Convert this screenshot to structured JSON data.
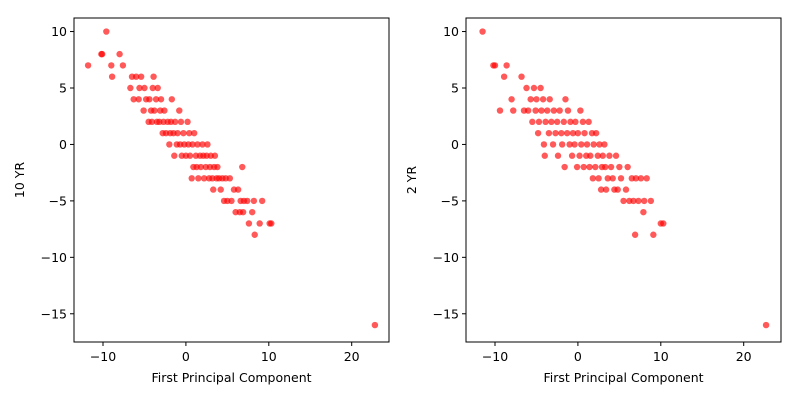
{
  "chart_data": [
    {
      "type": "scatter",
      "xlabel": "First Principal Component",
      "ylabel": "10 YR",
      "xlim": [
        -13.5,
        24.5
      ],
      "ylim": [
        -17.5,
        11.2
      ],
      "xticks": [
        -10,
        0,
        10,
        20
      ],
      "yticks": [
        10,
        5,
        0,
        -5,
        -10,
        -15
      ],
      "grid": false,
      "marker_color": "#ff0000",
      "points": [
        [
          -11.8,
          7
        ],
        [
          -10.2,
          8
        ],
        [
          -10.1,
          8
        ],
        [
          -9.6,
          10
        ],
        [
          -9.0,
          7
        ],
        [
          -8.9,
          6
        ],
        [
          -8.0,
          8
        ],
        [
          -7.6,
          7
        ],
        [
          -6.7,
          5
        ],
        [
          -6.5,
          6
        ],
        [
          -6.3,
          4
        ],
        [
          -6.0,
          6
        ],
        [
          -5.7,
          4
        ],
        [
          -5.6,
          5
        ],
        [
          -5.4,
          6
        ],
        [
          -5.1,
          3
        ],
        [
          -5.0,
          5
        ],
        [
          -4.8,
          4
        ],
        [
          -4.5,
          2
        ],
        [
          -4.4,
          4
        ],
        [
          -4.2,
          3
        ],
        [
          -4.1,
          2
        ],
        [
          -4.0,
          5
        ],
        [
          -3.9,
          6
        ],
        [
          -3.8,
          3
        ],
        [
          -3.6,
          4
        ],
        [
          -3.5,
          2
        ],
        [
          -3.4,
          5
        ],
        [
          -3.2,
          2
        ],
        [
          -3.1,
          3
        ],
        [
          -3.0,
          4
        ],
        [
          -2.8,
          1
        ],
        [
          -2.7,
          2
        ],
        [
          -2.6,
          3
        ],
        [
          -2.4,
          1
        ],
        [
          -2.2,
          2
        ],
        [
          -2.0,
          0
        ],
        [
          -1.9,
          1
        ],
        [
          -1.8,
          2
        ],
        [
          -1.7,
          4
        ],
        [
          -1.5,
          1
        ],
        [
          -1.4,
          -1
        ],
        [
          -1.3,
          2
        ],
        [
          -1.1,
          0
        ],
        [
          -1.0,
          1
        ],
        [
          -0.8,
          3
        ],
        [
          -0.7,
          0
        ],
        [
          -0.6,
          2
        ],
        [
          -0.5,
          -1
        ],
        [
          -0.3,
          1
        ],
        [
          -0.2,
          0
        ],
        [
          0.0,
          -1
        ],
        [
          0.2,
          2
        ],
        [
          0.3,
          0
        ],
        [
          0.4,
          1
        ],
        [
          0.5,
          -1
        ],
        [
          0.7,
          -3
        ],
        [
          0.8,
          0
        ],
        [
          0.9,
          -2
        ],
        [
          1.0,
          1
        ],
        [
          1.2,
          -1
        ],
        [
          1.3,
          -2
        ],
        [
          1.4,
          0
        ],
        [
          1.5,
          -3
        ],
        [
          1.7,
          -1
        ],
        [
          1.8,
          -2
        ],
        [
          2.0,
          0
        ],
        [
          2.1,
          -1
        ],
        [
          2.2,
          -3
        ],
        [
          2.4,
          -2
        ],
        [
          2.5,
          -1
        ],
        [
          2.6,
          0
        ],
        [
          2.8,
          -3
        ],
        [
          2.9,
          -2
        ],
        [
          3.0,
          -1
        ],
        [
          3.2,
          -3
        ],
        [
          3.3,
          -4
        ],
        [
          3.4,
          -2
        ],
        [
          3.5,
          -1
        ],
        [
          3.7,
          -3
        ],
        [
          3.8,
          -2
        ],
        [
          4.0,
          -3
        ],
        [
          4.2,
          -4
        ],
        [
          4.4,
          -3
        ],
        [
          4.6,
          -5
        ],
        [
          4.8,
          -3
        ],
        [
          5.0,
          -5
        ],
        [
          5.3,
          -3
        ],
        [
          5.5,
          -5
        ],
        [
          5.8,
          -4
        ],
        [
          6.0,
          -6
        ],
        [
          6.3,
          -4
        ],
        [
          6.5,
          -6
        ],
        [
          6.6,
          -5
        ],
        [
          6.8,
          -2
        ],
        [
          6.9,
          -6
        ],
        [
          7.0,
          -5
        ],
        [
          7.4,
          -5
        ],
        [
          7.6,
          -7
        ],
        [
          8.0,
          -6
        ],
        [
          8.2,
          -5
        ],
        [
          8.3,
          -8
        ],
        [
          8.9,
          -7
        ],
        [
          9.2,
          -5
        ],
        [
          10.1,
          -7
        ],
        [
          10.3,
          -7
        ],
        [
          22.8,
          -16
        ]
      ]
    },
    {
      "type": "scatter",
      "xlabel": "First Principal Component",
      "ylabel": "2 YR",
      "xlim": [
        -13.5,
        24.5
      ],
      "ylim": [
        -17.5,
        11.2
      ],
      "xticks": [
        -10,
        0,
        10,
        20
      ],
      "yticks": [
        10,
        5,
        0,
        -5,
        -10,
        -15
      ],
      "grid": false,
      "marker_color": "#ff0000",
      "points": [
        [
          -11.5,
          10
        ],
        [
          -10.2,
          7
        ],
        [
          -10.0,
          7
        ],
        [
          -9.4,
          3
        ],
        [
          -8.9,
          6
        ],
        [
          -8.6,
          7
        ],
        [
          -8.0,
          4
        ],
        [
          -7.8,
          3
        ],
        [
          -6.8,
          6
        ],
        [
          -6.5,
          3
        ],
        [
          -6.2,
          5
        ],
        [
          -6.0,
          3
        ],
        [
          -5.7,
          4
        ],
        [
          -5.5,
          2
        ],
        [
          -5.3,
          5
        ],
        [
          -5.1,
          3
        ],
        [
          -5.0,
          4
        ],
        [
          -4.8,
          1
        ],
        [
          -4.7,
          2
        ],
        [
          -4.5,
          5
        ],
        [
          -4.4,
          3
        ],
        [
          -4.2,
          4
        ],
        [
          -4.1,
          0
        ],
        [
          -4.0,
          -1
        ],
        [
          -3.9,
          2
        ],
        [
          -3.7,
          3
        ],
        [
          -3.5,
          1
        ],
        [
          -3.4,
          4
        ],
        [
          -3.2,
          2
        ],
        [
          -3.0,
          0
        ],
        [
          -2.9,
          3
        ],
        [
          -2.7,
          1
        ],
        [
          -2.5,
          2
        ],
        [
          -2.4,
          -1
        ],
        [
          -2.2,
          3
        ],
        [
          -2.0,
          1
        ],
        [
          -1.9,
          0
        ],
        [
          -1.7,
          2
        ],
        [
          -1.6,
          -2
        ],
        [
          -1.5,
          4
        ],
        [
          -1.3,
          1
        ],
        [
          -1.2,
          3
        ],
        [
          -1.0,
          0
        ],
        [
          -0.9,
          2
        ],
        [
          -0.7,
          -1
        ],
        [
          -0.6,
          1
        ],
        [
          -0.4,
          0
        ],
        [
          -0.3,
          2
        ],
        [
          -0.1,
          -2
        ],
        [
          0.0,
          1
        ],
        [
          0.2,
          -1
        ],
        [
          0.3,
          3
        ],
        [
          0.4,
          0
        ],
        [
          0.6,
          2
        ],
        [
          0.7,
          -2
        ],
        [
          0.8,
          1
        ],
        [
          1.0,
          -1
        ],
        [
          1.1,
          0
        ],
        [
          1.3,
          2
        ],
        [
          1.4,
          -2
        ],
        [
          1.5,
          -1
        ],
        [
          1.7,
          1
        ],
        [
          1.8,
          -3
        ],
        [
          1.9,
          0
        ],
        [
          2.1,
          -2
        ],
        [
          2.2,
          1
        ],
        [
          2.4,
          -1
        ],
        [
          2.5,
          -3
        ],
        [
          2.6,
          0
        ],
        [
          2.8,
          -4
        ],
        [
          2.9,
          -2
        ],
        [
          3.0,
          -1
        ],
        [
          3.2,
          0
        ],
        [
          3.3,
          -2
        ],
        [
          3.4,
          -4
        ],
        [
          3.6,
          -3
        ],
        [
          3.8,
          -1
        ],
        [
          4.0,
          -2
        ],
        [
          4.2,
          -3
        ],
        [
          4.4,
          -4
        ],
        [
          4.6,
          -1
        ],
        [
          4.8,
          -4
        ],
        [
          5.0,
          -2
        ],
        [
          5.2,
          -3
        ],
        [
          5.5,
          -5
        ],
        [
          5.8,
          -4
        ],
        [
          6.0,
          -2
        ],
        [
          6.2,
          -5
        ],
        [
          6.5,
          -3
        ],
        [
          6.7,
          -5
        ],
        [
          6.9,
          -8
        ],
        [
          7.0,
          -3
        ],
        [
          7.3,
          -5
        ],
        [
          7.6,
          -3
        ],
        [
          7.9,
          -6
        ],
        [
          8.0,
          -5
        ],
        [
          8.3,
          -3
        ],
        [
          8.8,
          -5
        ],
        [
          9.1,
          -8
        ],
        [
          10.0,
          -7
        ],
        [
          10.3,
          -7
        ],
        [
          22.7,
          -16
        ]
      ]
    }
  ]
}
